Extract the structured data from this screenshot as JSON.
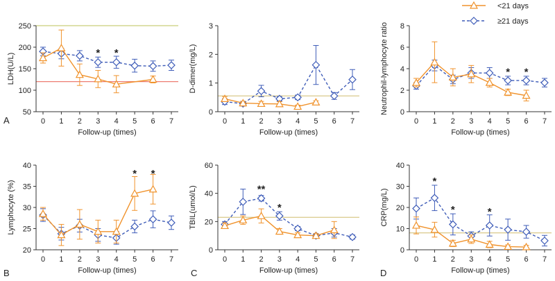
{
  "colors": {
    "lt21": "#f0922b",
    "ge21": "#3e5cb8",
    "ref_upper": "#c9cf7a",
    "ref_lower": "#ee7d72",
    "ref_single": "#d9c98a",
    "axis": "#333333"
  },
  "legend": {
    "lt21_label": "<21 days",
    "ge21_label": "≥21 days"
  },
  "chart_data": [
    {
      "type": "line",
      "letter": "A",
      "xlabel": "Follow-up (times)",
      "ylabel": "LDH(U/L)",
      "ylim": [
        50,
        250
      ],
      "yticks": [
        50,
        100,
        150,
        200,
        250
      ],
      "xticks": [
        0,
        1,
        2,
        3,
        4,
        5,
        6,
        7
      ],
      "reflines": [
        {
          "value": 250,
          "color": "ref_upper"
        },
        {
          "value": 120,
          "color": "ref_lower"
        }
      ],
      "series": [
        {
          "name": "<21 days",
          "x": [
            0,
            1,
            2,
            3,
            4,
            6
          ],
          "y": [
            175,
            198,
            136,
            126,
            114,
            125
          ],
          "err": [
            12,
            42,
            25,
            20,
            20,
            8
          ]
        },
        {
          "name": "≥21 days",
          "x": [
            0,
            1,
            2,
            3,
            4,
            5,
            6,
            7
          ],
          "y": [
            190,
            185,
            180,
            165,
            165,
            157,
            156,
            158
          ],
          "err": [
            10,
            12,
            12,
            12,
            14,
            15,
            12,
            12
          ]
        }
      ],
      "stars": [
        {
          "x": 3,
          "text": "*",
          "y": 187
        },
        {
          "x": 4,
          "text": "*",
          "y": 187
        }
      ]
    },
    {
      "type": "line",
      "letter": "",
      "xlabel": "Follow-up (times)",
      "ylabel": "D-dimer(mg/L)",
      "ylim": [
        0,
        3
      ],
      "yticks": [
        0,
        1,
        2,
        3
      ],
      "xticks": [
        0,
        1,
        2,
        3,
        4,
        5,
        6,
        7
      ],
      "reflines": [
        {
          "value": 0.55,
          "color": "ref_single"
        }
      ],
      "series": [
        {
          "name": "<21 days",
          "x": [
            0,
            1,
            2,
            3,
            4,
            5
          ],
          "y": [
            0.45,
            0.3,
            0.28,
            0.27,
            0.18,
            0.33
          ],
          "err": [
            0.08,
            0.06,
            0.08,
            0.08,
            0.05,
            0.05
          ]
        },
        {
          "name": "≥21 days",
          "x": [
            0,
            1,
            2,
            3,
            4,
            5,
            6,
            7
          ],
          "y": [
            0.35,
            0.28,
            0.72,
            0.45,
            0.5,
            1.63,
            0.55,
            1.12
          ],
          "err": [
            0.1,
            0.08,
            0.2,
            0.08,
            0.08,
            0.68,
            0.12,
            0.35
          ]
        }
      ],
      "stars": []
    },
    {
      "type": "line",
      "letter": "",
      "xlabel": "Follow-up (times)",
      "ylabel": "Neutrophil-lymphocyte ratio",
      "ylim": [
        0,
        8
      ],
      "yticks": [
        0,
        2,
        4,
        6,
        8
      ],
      "xticks": [
        0,
        1,
        2,
        3,
        4,
        5,
        6,
        7
      ],
      "reflines": [],
      "series": [
        {
          "name": "<21 days",
          "x": [
            0,
            1,
            2,
            3,
            4,
            5,
            6
          ],
          "y": [
            2.7,
            4.6,
            3.2,
            3.5,
            2.7,
            1.8,
            1.5
          ],
          "err": [
            0.4,
            1.9,
            0.8,
            0.8,
            0.4,
            0.3,
            0.5
          ]
        },
        {
          "name": "≥21 days",
          "x": [
            0,
            1,
            2,
            3,
            4,
            5,
            6,
            7
          ],
          "y": [
            2.4,
            4.3,
            3.0,
            3.6,
            3.6,
            2.9,
            2.9,
            2.7
          ],
          "err": [
            0.3,
            0.5,
            0.4,
            0.5,
            0.5,
            0.4,
            0.4,
            0.4
          ]
        }
      ],
      "stars": [
        {
          "x": 5,
          "text": "*",
          "y": 3.7
        },
        {
          "x": 6,
          "text": "*",
          "y": 3.7
        }
      ]
    },
    {
      "type": "line",
      "letter": "B",
      "xlabel": "Follow-up (times)",
      "ylabel": "Lymphocyte (%)",
      "ylim": [
        20,
        40
      ],
      "yticks": [
        20,
        25,
        30,
        35,
        40
      ],
      "xticks": [
        0,
        1,
        2,
        3,
        4,
        5,
        6,
        7
      ],
      "reflines": [],
      "series": [
        {
          "name": "<21 days",
          "x": [
            0,
            1,
            2,
            3,
            4,
            5,
            6
          ],
          "y": [
            28.5,
            23.5,
            26.0,
            24.3,
            24.3,
            33.3,
            34.3
          ],
          "err": [
            1.5,
            2.5,
            3.5,
            2.7,
            2.7,
            4.0,
            3.5
          ]
        },
        {
          "name": "≥21 days",
          "x": [
            0,
            1,
            2,
            3,
            4,
            5,
            6,
            7
          ],
          "y": [
            28.2,
            23.8,
            25.7,
            23.5,
            22.8,
            25.5,
            27.2,
            26.4
          ],
          "err": [
            1.5,
            1.5,
            1.5,
            1.5,
            1.5,
            1.5,
            2.0,
            1.6
          ]
        }
      ],
      "stars": [
        {
          "x": 5,
          "text": "*",
          "y": 38.0
        },
        {
          "x": 6,
          "text": "*",
          "y": 38.0
        }
      ]
    },
    {
      "type": "line",
      "letter": "C",
      "xlabel": "Follow-up (times)",
      "ylabel": "TBIL(umol/L)",
      "ylim": [
        0,
        60
      ],
      "yticks": [
        0,
        20,
        40,
        60
      ],
      "xticks": [
        0,
        1,
        2,
        3,
        4,
        5,
        6,
        7
      ],
      "reflines": [
        {
          "value": 23,
          "color": "ref_single"
        }
      ],
      "series": [
        {
          "name": "<21 days",
          "x": [
            0,
            1,
            2,
            3,
            4,
            5,
            6
          ],
          "y": [
            17,
            21,
            24,
            13,
            10.5,
            10,
            14
          ],
          "err": [
            2,
            3,
            5,
            2,
            1.5,
            1.5,
            6
          ]
        },
        {
          "name": "≥21 days",
          "x": [
            0,
            1,
            2,
            3,
            4,
            5,
            6,
            7
          ],
          "y": [
            18,
            34,
            36.5,
            24,
            15,
            10,
            12,
            9
          ],
          "err": [
            2,
            9,
            2,
            3,
            1.5,
            1.5,
            3,
            1.5
          ]
        }
      ],
      "stars": [
        {
          "x": 2,
          "text": "**",
          "y": 43
        },
        {
          "x": 3,
          "text": "*",
          "y": 30
        }
      ]
    },
    {
      "type": "line",
      "letter": "D",
      "xlabel": "Follow-up (times)",
      "ylabel": "CRP(mg/L)",
      "ylim": [
        0,
        40
      ],
      "yticks": [
        0,
        10,
        20,
        30,
        40
      ],
      "xticks": [
        0,
        1,
        2,
        3,
        4,
        5,
        6,
        7
      ],
      "reflines": [
        {
          "value": 8,
          "color": "ref_single"
        }
      ],
      "series": [
        {
          "name": "<21 days",
          "x": [
            0,
            1,
            2,
            3,
            4,
            5,
            6
          ],
          "y": [
            11.5,
            9.5,
            3,
            5,
            2.5,
            1.5,
            1.3
          ],
          "err": [
            4,
            3.5,
            1.5,
            2,
            1.5,
            0.8,
            0.8
          ]
        },
        {
          "name": "≥21 days",
          "x": [
            0,
            1,
            2,
            3,
            4,
            5,
            6,
            7
          ],
          "y": [
            19.5,
            24.5,
            12,
            6.5,
            11.5,
            9.5,
            8.5,
            4.3
          ],
          "err": [
            5,
            6,
            5,
            2,
            5,
            5,
            3,
            2.5
          ]
        }
      ],
      "stars": [
        {
          "x": 1,
          "text": "*",
          "y": 32.5
        },
        {
          "x": 2,
          "text": "*",
          "y": 19
        },
        {
          "x": 4,
          "text": "*",
          "y": 18
        }
      ]
    }
  ]
}
